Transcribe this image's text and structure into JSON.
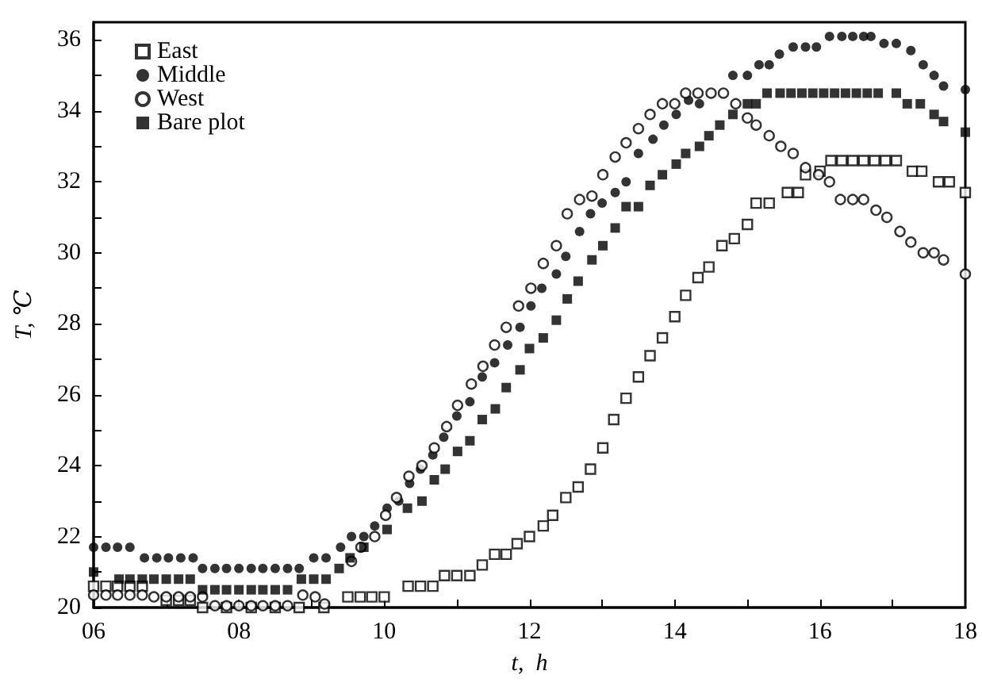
{
  "chart_data": {
    "type": "scatter",
    "xlabel": "t,  h",
    "ylabel": "T, ℃",
    "legend": "top left",
    "grid": false,
    "xlim": [
      6,
      18
    ],
    "ylim": [
      20,
      36.5
    ],
    "xticks": [
      {
        "value": 6,
        "label": "06"
      },
      {
        "value": 7,
        "label": null
      },
      {
        "value": 8,
        "label": "08"
      },
      {
        "value": 9,
        "label": null
      },
      10,
      {
        "value": 11,
        "label": null
      },
      12,
      {
        "value": 13,
        "label": null
      },
      14,
      {
        "value": 15,
        "label": null
      },
      16,
      {
        "value": 17,
        "label": null
      },
      18
    ],
    "yticks": [
      20,
      {
        "value": 21,
        "label": null
      },
      22,
      {
        "value": 23,
        "label": null
      },
      24,
      {
        "value": 25,
        "label": null
      },
      26,
      {
        "value": 27,
        "label": null
      },
      28,
      {
        "value": 29,
        "label": null
      },
      30,
      {
        "value": 31,
        "label": null
      },
      32,
      {
        "value": 33,
        "label": null
      },
      34,
      {
        "value": 35,
        "label": null
      },
      36
    ],
    "series": [
      {
        "name": "East",
        "color": "#000000",
        "marker": "square",
        "x": [
          6.0,
          6.17,
          6.33,
          6.5,
          6.67,
          7.0,
          7.17,
          7.33,
          7.5,
          7.83,
          8.17,
          8.5,
          8.83,
          9.17,
          9.5,
          9.67,
          9.83,
          10.0,
          10.33,
          10.5,
          10.67,
          10.83,
          11.0,
          11.18,
          11.35,
          11.52,
          11.68,
          11.83,
          12.0,
          12.19,
          12.32,
          12.5,
          12.67,
          12.84,
          13.01,
          13.16,
          13.33,
          13.5,
          13.66,
          13.83,
          14.0,
          14.15,
          14.32,
          14.47,
          14.65,
          14.82,
          15.0,
          15.12,
          15.3,
          15.55,
          15.7,
          15.8,
          16.0,
          16.15,
          16.3,
          16.45,
          16.6,
          16.75,
          16.9,
          17.05,
          17.27,
          17.4,
          17.63,
          17.78,
          18.0
        ],
        "values": [
          20.6,
          20.6,
          20.6,
          20.6,
          20.6,
          20.2,
          20.2,
          20.2,
          20.0,
          20.0,
          20.0,
          20.0,
          20.0,
          20.0,
          20.3,
          20.3,
          20.3,
          20.3,
          20.6,
          20.6,
          20.6,
          20.9,
          20.9,
          20.9,
          21.2,
          21.5,
          21.5,
          21.8,
          22.0,
          22.3,
          22.6,
          23.1,
          23.4,
          23.9,
          24.5,
          25.3,
          25.9,
          26.5,
          27.1,
          27.6,
          28.2,
          28.8,
          29.3,
          29.6,
          30.2,
          30.4,
          30.8,
          31.4,
          31.4,
          31.7,
          31.7,
          32.2,
          32.3,
          32.6,
          32.6,
          32.6,
          32.6,
          32.6,
          32.6,
          32.6,
          32.3,
          32.3,
          32.0,
          32.0,
          31.7
        ]
      },
      {
        "name": "Middle",
        "color": "#000000",
        "marker": "circle",
        "x": [
          6.0,
          6.17,
          6.33,
          6.5,
          6.7,
          6.87,
          7.03,
          7.2,
          7.37,
          7.5,
          7.67,
          7.83,
          8.0,
          8.17,
          8.33,
          8.5,
          8.67,
          8.83,
          9.03,
          9.2,
          9.4,
          9.55,
          9.72,
          9.87,
          10.04,
          10.2,
          10.35,
          10.5,
          10.67,
          10.82,
          11.0,
          11.18,
          11.35,
          11.52,
          11.7,
          11.87,
          12.02,
          12.17,
          12.37,
          12.5,
          12.69,
          12.84,
          13.0,
          13.18,
          13.33,
          13.5,
          13.7,
          13.85,
          14.02,
          14.19,
          14.34,
          14.8,
          15.0,
          15.16,
          15.3,
          15.44,
          15.63,
          15.8,
          15.95,
          16.13,
          16.3,
          16.45,
          16.6,
          16.7,
          16.88,
          17.05,
          17.25,
          17.42,
          17.57,
          17.7,
          18.0
        ],
        "values": [
          21.7,
          21.7,
          21.7,
          21.7,
          21.4,
          21.4,
          21.4,
          21.4,
          21.4,
          21.1,
          21.1,
          21.1,
          21.1,
          21.1,
          21.1,
          21.1,
          21.1,
          21.1,
          21.4,
          21.4,
          21.7,
          22.0,
          22.0,
          22.3,
          22.8,
          23.0,
          23.5,
          23.9,
          24.3,
          24.8,
          25.4,
          25.8,
          26.5,
          26.9,
          27.4,
          27.9,
          28.5,
          29.0,
          29.4,
          29.9,
          30.6,
          31.1,
          31.4,
          31.7,
          32.0,
          32.8,
          33.2,
          33.6,
          33.9,
          34.3,
          34.2,
          35.0,
          35.0,
          35.3,
          35.3,
          35.6,
          35.8,
          35.8,
          35.8,
          36.1,
          36.1,
          36.1,
          36.1,
          36.1,
          35.9,
          35.9,
          35.7,
          35.3,
          35.0,
          34.7,
          34.6
        ]
      },
      {
        "name": "West",
        "color": "#000000",
        "marker": "circle",
        "x": [
          6.0,
          6.17,
          6.33,
          6.5,
          6.67,
          6.83,
          7.0,
          7.17,
          7.33,
          7.5,
          7.67,
          7.83,
          8.0,
          8.17,
          8.33,
          8.5,
          8.67,
          8.88,
          9.05,
          9.18,
          9.55,
          9.68,
          9.87,
          10.02,
          10.17,
          10.34,
          10.52,
          10.69,
          10.86,
          11.01,
          11.2,
          11.36,
          11.52,
          11.68,
          11.85,
          12.02,
          12.19,
          12.37,
          12.52,
          12.69,
          12.86,
          13.01,
          13.18,
          13.33,
          13.5,
          13.66,
          13.83,
          14.0,
          14.15,
          14.32,
          14.5,
          14.67,
          14.84,
          15.0,
          15.12,
          15.3,
          15.46,
          15.63,
          15.8,
          15.98,
          16.13,
          16.28,
          16.45,
          16.6,
          16.77,
          16.92,
          17.1,
          17.25,
          17.42,
          17.57,
          17.7,
          18.0
        ],
        "values": [
          20.35,
          20.35,
          20.35,
          20.35,
          20.35,
          20.3,
          20.3,
          20.3,
          20.3,
          20.3,
          20.05,
          20.05,
          20.05,
          20.05,
          20.05,
          20.05,
          20.05,
          20.35,
          20.3,
          20.1,
          21.3,
          21.7,
          22.0,
          22.6,
          23.1,
          23.7,
          24.0,
          24.5,
          25.1,
          25.7,
          26.3,
          26.8,
          27.4,
          27.9,
          28.5,
          29.0,
          29.7,
          30.2,
          31.1,
          31.5,
          31.6,
          32.2,
          32.7,
          33.1,
          33.5,
          33.9,
          34.2,
          34.2,
          34.5,
          34.5,
          34.5,
          34.5,
          34.2,
          33.8,
          33.6,
          33.3,
          33.0,
          32.8,
          32.4,
          32.2,
          32.0,
          31.5,
          31.5,
          31.5,
          31.2,
          31.0,
          30.6,
          30.3,
          30.0,
          30.0,
          29.8,
          29.4
        ]
      },
      {
        "name": "Bare plot",
        "color": "#000000",
        "marker": "square",
        "x": [
          6.0,
          6.35,
          6.5,
          6.67,
          6.83,
          7.0,
          7.17,
          7.33,
          7.5,
          7.67,
          7.83,
          8.0,
          8.17,
          8.33,
          8.5,
          8.67,
          8.86,
          9.03,
          9.2,
          9.38,
          9.53,
          9.72,
          10.04,
          10.32,
          10.52,
          10.69,
          10.84,
          11.01,
          11.18,
          11.35,
          11.53,
          11.68,
          11.87,
          12.0,
          12.19,
          12.37,
          12.52,
          12.67,
          12.86,
          13.01,
          13.18,
          13.33,
          13.5,
          13.66,
          13.83,
          14.02,
          14.15,
          14.34,
          14.47,
          14.62,
          14.8,
          15.0,
          15.12,
          15.27,
          15.45,
          15.6,
          15.75,
          15.9,
          16.05,
          16.2,
          16.35,
          16.5,
          16.65,
          16.8,
          17.05,
          17.2,
          17.38,
          17.57,
          17.7,
          18.0
        ],
        "values": [
          21.0,
          20.8,
          20.8,
          20.8,
          20.8,
          20.8,
          20.8,
          20.8,
          20.5,
          20.5,
          20.5,
          20.5,
          20.5,
          20.5,
          20.5,
          20.5,
          20.8,
          20.8,
          20.8,
          21.1,
          21.4,
          21.7,
          22.2,
          22.8,
          23.0,
          23.6,
          23.9,
          24.4,
          24.7,
          25.3,
          25.6,
          26.2,
          26.7,
          27.3,
          27.6,
          28.1,
          28.7,
          29.2,
          29.8,
          30.2,
          30.7,
          31.3,
          31.3,
          31.9,
          32.2,
          32.5,
          32.8,
          33.0,
          33.3,
          33.6,
          33.9,
          34.2,
          34.2,
          34.5,
          34.5,
          34.5,
          34.5,
          34.5,
          34.5,
          34.5,
          34.5,
          34.5,
          34.5,
          34.5,
          34.5,
          34.2,
          34.2,
          33.9,
          33.7,
          33.4
        ]
      }
    ]
  }
}
